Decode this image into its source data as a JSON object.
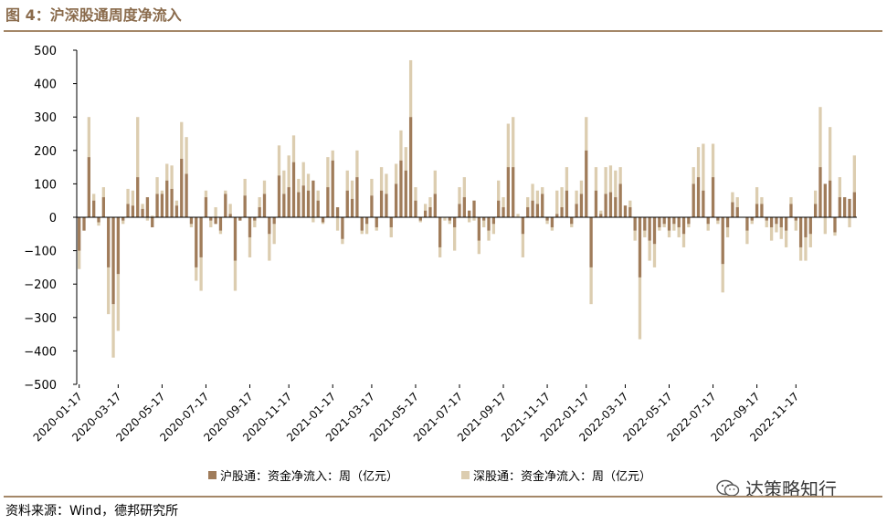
{
  "figure": {
    "title": "图 4：沪深股通周度净流入",
    "source": "资料来源：Wind，德邦研究所",
    "watermark": "达策略知行"
  },
  "colors": {
    "sh": "#a07c5a",
    "sz": "#dccdb0",
    "axis": "#000000",
    "rule": "#a48768"
  },
  "chart_data": {
    "type": "bar",
    "stacked": true,
    "title": "",
    "xlabel": "",
    "ylabel": "",
    "ylim": [
      -500,
      500
    ],
    "yticks": [
      500,
      400,
      300,
      200,
      100,
      0,
      -100,
      -200,
      -300,
      -400,
      -500
    ],
    "legend_position": "bottom",
    "x_tick_labels": [
      "2020-01-17",
      "2020-03-17",
      "2020-05-17",
      "2020-07-17",
      "2020-09-17",
      "2020-11-17",
      "2021-01-17",
      "2021-03-17",
      "2021-05-17",
      "2021-07-17",
      "2021-09-17",
      "2021-11-17",
      "2022-01-17",
      "2022-03-17",
      "2022-05-17",
      "2022-07-17",
      "2022-09-17",
      "2022-11-17"
    ],
    "x_tick_week_index": [
      0,
      8,
      17,
      26,
      35,
      43,
      52,
      60,
      69,
      78,
      87,
      96,
      104,
      112,
      121,
      130,
      139,
      147
    ],
    "series": [
      {
        "name": "沪股通：资金净流入：周（亿元）",
        "values": [
          -100,
          -40,
          180,
          50,
          -15,
          60,
          -150,
          -260,
          -170,
          -10,
          40,
          35,
          120,
          25,
          60,
          -30,
          70,
          70,
          110,
          85,
          35,
          175,
          130,
          -20,
          -150,
          -120,
          60,
          -10,
          -20,
          -40,
          70,
          10,
          -130,
          -10,
          65,
          -60,
          -10,
          30,
          70,
          -50,
          -20,
          125,
          70,
          90,
          165,
          75,
          95,
          80,
          110,
          50,
          -15,
          90,
          170,
          30,
          -65,
          80,
          55,
          120,
          -40,
          -20,
          65,
          -30,
          80,
          70,
          -30,
          100,
          170,
          140,
          300,
          50,
          -10,
          20,
          30,
          70,
          -90,
          0,
          -10,
          -30,
          40,
          60,
          20,
          50,
          -70,
          -10,
          -40,
          -20,
          50,
          30,
          150,
          150,
          0,
          -50,
          30,
          50,
          40,
          70,
          -10,
          -30,
          10,
          30,
          80,
          -20,
          40,
          70,
          200,
          -150,
          80,
          10,
          70,
          75,
          60,
          100,
          35,
          30,
          -40,
          -180,
          -40,
          -70,
          -80,
          -30,
          -20,
          -40,
          -20,
          -30,
          -50,
          -20,
          100,
          120,
          80,
          -20,
          120,
          -10,
          -140,
          -30,
          45,
          30,
          0,
          -40,
          -10,
          40,
          40,
          -10,
          -30,
          -20,
          -30,
          -40,
          40,
          -10,
          -90,
          -60,
          -50,
          40,
          150,
          100,
          110,
          -45,
          60,
          60,
          55,
          75
        ],
        "source_note": ""
      },
      {
        "name": "深股通：资金净流入：周（亿元）",
        "values": [
          -55,
          0,
          120,
          20,
          -10,
          30,
          -140,
          -160,
          -170,
          -10,
          45,
          45,
          180,
          15,
          -10,
          5,
          50,
          10,
          50,
          70,
          15,
          110,
          110,
          -10,
          -40,
          -100,
          20,
          -20,
          30,
          -10,
          10,
          30,
          -90,
          0,
          50,
          -60,
          -20,
          30,
          40,
          -80,
          -60,
          90,
          70,
          95,
          80,
          40,
          70,
          50,
          -15,
          30,
          -5,
          90,
          30,
          -40,
          -15,
          60,
          55,
          80,
          -10,
          -30,
          50,
          -10,
          70,
          60,
          -30,
          60,
          90,
          70,
          170,
          40,
          -5,
          20,
          30,
          70,
          -30,
          -10,
          -10,
          -70,
          50,
          60,
          -15,
          -10,
          -40,
          -20,
          -30,
          -30,
          60,
          30,
          130,
          150,
          10,
          -70,
          30,
          50,
          40,
          20,
          -10,
          -10,
          70,
          60,
          70,
          -10,
          40,
          40,
          100,
          -110,
          70,
          10,
          80,
          80,
          80,
          50,
          0,
          20,
          -30,
          -185,
          -20,
          -60,
          -70,
          -10,
          -10,
          -20,
          -20,
          -30,
          -40,
          -10,
          50,
          90,
          140,
          -20,
          100,
          -10,
          -85,
          -30,
          30,
          30,
          0,
          -40,
          -10,
          50,
          20,
          -20,
          -40,
          -25,
          -35,
          -50,
          20,
          -30,
          -40,
          -70,
          -40,
          40,
          180,
          -50,
          160,
          -10,
          60,
          0,
          -30,
          110
        ]
      }
    ]
  },
  "legend": {
    "sh_label": "沪股通：资金净流入：周（亿元）",
    "sz_label": "深股通：资金净流入：周（亿元）"
  }
}
